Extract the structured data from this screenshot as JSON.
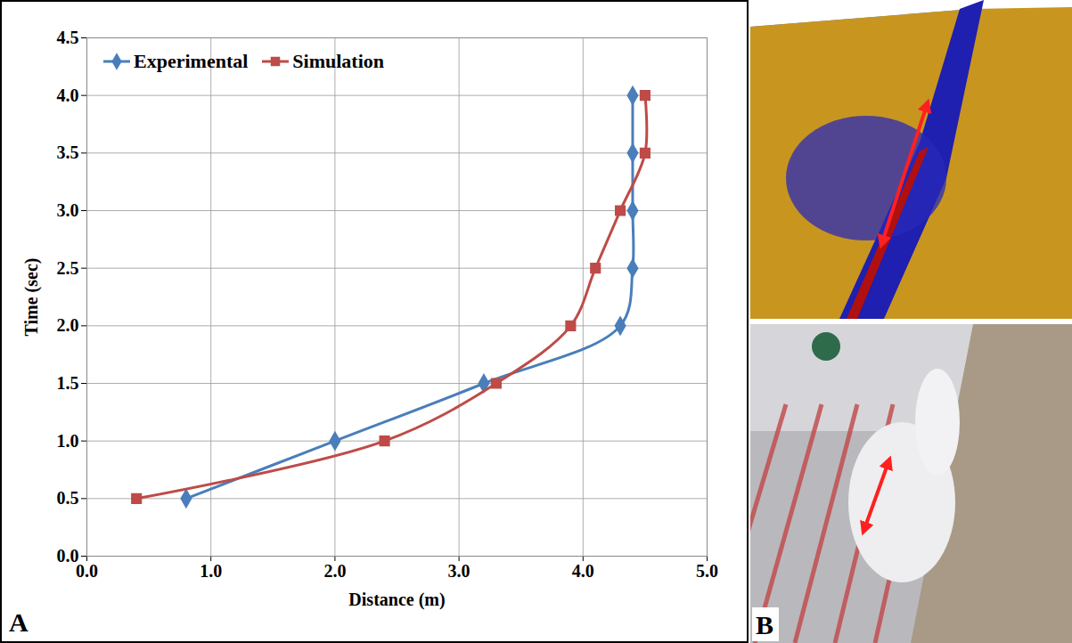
{
  "chart_data": {
    "type": "line",
    "panel": "A",
    "x_label": "Distance (m)",
    "y_label": "Time (sec)",
    "series": [
      {
        "name": "Experimental",
        "color": "#4a7ebb",
        "marker": "diamond",
        "x": [
          0.8,
          2.0,
          3.2,
          4.3,
          4.4,
          4.4,
          4.4,
          4.4
        ],
        "values": [
          0.5,
          1.0,
          1.5,
          2.0,
          2.5,
          3.0,
          3.5,
          4.0
        ]
      },
      {
        "name": "Simulation",
        "color": "#be4b48",
        "marker": "square",
        "x": [
          0.4,
          2.4,
          3.3,
          3.9,
          4.1,
          4.3,
          4.5,
          4.5
        ],
        "values": [
          0.5,
          1.0,
          1.5,
          2.0,
          2.5,
          3.0,
          3.5,
          4.0
        ]
      }
    ],
    "xlim": [
      0,
      5
    ],
    "xticks": [
      {
        "value": 0,
        "label": "0.0"
      },
      {
        "value": 1,
        "label": "1.0"
      },
      {
        "value": 2,
        "label": "2.0"
      },
      {
        "value": 3,
        "label": "3.0"
      },
      {
        "value": 4,
        "label": "4.0"
      },
      {
        "value": 5,
        "label": "5.0"
      }
    ],
    "ylim": [
      0,
      4.5
    ],
    "yticks": [
      {
        "value": 0,
        "label": "0.0"
      },
      0.5,
      {
        "value": 1,
        "label": "1.0"
      },
      1.5,
      {
        "value": 2,
        "label": "2.0"
      },
      2.5,
      {
        "value": 3,
        "label": "3.0"
      },
      3.5,
      {
        "value": 4,
        "label": "4.0"
      },
      4.5
    ],
    "grid": true,
    "legend": "top-left"
  },
  "panel_b": {
    "label": "B"
  }
}
